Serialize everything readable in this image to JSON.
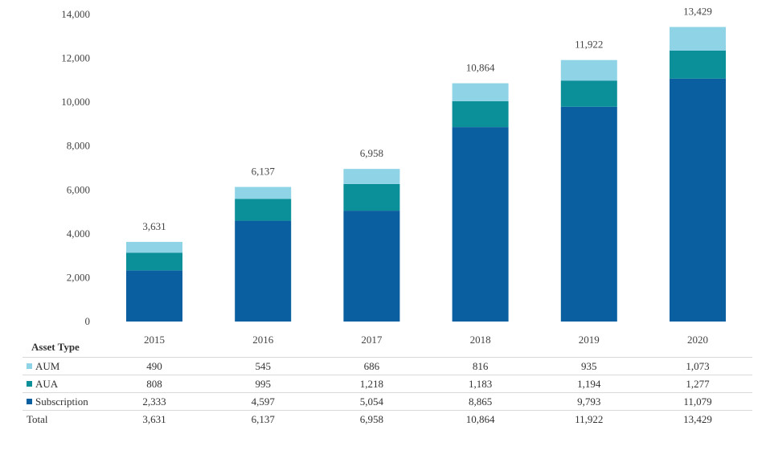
{
  "chart_data": {
    "type": "bar",
    "stacked": true,
    "categories": [
      "2015",
      "2016",
      "2017",
      "2018",
      "2019",
      "2020"
    ],
    "series": [
      {
        "name": "Subscription",
        "color": "#0a5fa0",
        "values": [
          2333,
          4597,
          5054,
          8865,
          9793,
          11079
        ]
      },
      {
        "name": "AUA",
        "color": "#0b9099",
        "values": [
          808,
          995,
          1218,
          1183,
          1194,
          1277
        ]
      },
      {
        "name": "AUM",
        "color": "#8fd3e6",
        "values": [
          490,
          545,
          686,
          816,
          935,
          1073
        ]
      }
    ],
    "totals": [
      3631,
      6137,
      6958,
      10864,
      11922,
      13429
    ],
    "total_labels": [
      "3,631",
      "6,137",
      "6,958",
      "10,864",
      "11,922",
      "13,429"
    ],
    "ylim": [
      0,
      14000
    ],
    "yticks": [
      0,
      2000,
      4000,
      6000,
      8000,
      10000,
      12000,
      14000
    ],
    "ytick_labels": [
      "0",
      "2,000",
      "4,000",
      "6,000",
      "8,000",
      "10,000",
      "12,000",
      "14,000"
    ],
    "title": "",
    "xlabel": "",
    "ylabel": ""
  },
  "table": {
    "header": "Asset Type",
    "rows": [
      {
        "name": "AUM",
        "color": "#8fd3e6",
        "cells": [
          "490",
          "545",
          "686",
          "816",
          "935",
          "1,073"
        ]
      },
      {
        "name": "AUA",
        "color": "#0b9099",
        "cells": [
          "808",
          "995",
          "1,218",
          "1,183",
          "1,194",
          "1,277"
        ]
      },
      {
        "name": "Subscription",
        "color": "#0a5fa0",
        "cells": [
          "2,333",
          "4,597",
          "5,054",
          "8,865",
          "9,793",
          "11,079"
        ]
      },
      {
        "name": "Total",
        "color": "",
        "cells": [
          "3,631",
          "6,137",
          "6,958",
          "10,864",
          "11,922",
          "13,429"
        ]
      }
    ]
  }
}
